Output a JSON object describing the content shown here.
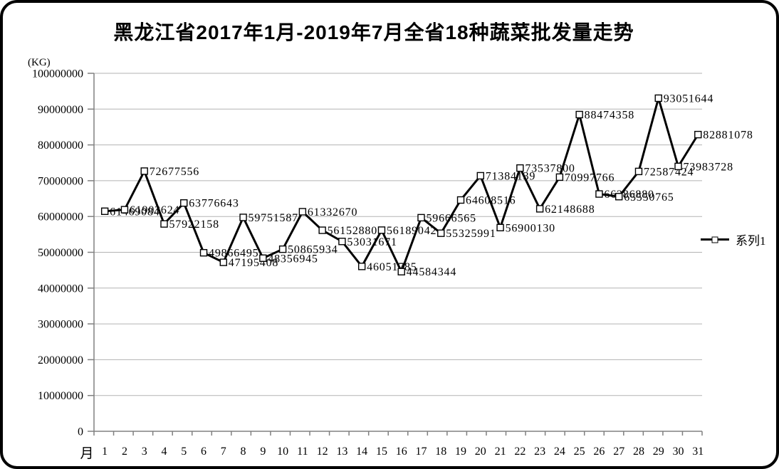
{
  "title": "黑龙江省2017年1月-2019年7月全省18种蔬菜批发量走势",
  "axis_unit_label": "(KG)",
  "x_axis_title": "月",
  "legend": {
    "series_label": "系列1"
  },
  "colors": {
    "line": "#000000",
    "marker_fill": "#ffffff",
    "grid": "#b3b3b3",
    "axis": "#808080",
    "text": "#000000",
    "frame_border": "#000000"
  },
  "chart_data": {
    "type": "line",
    "title": "黑龙江省2017年1月-2019年7月全省18种蔬菜批发量走势",
    "xlabel": "月",
    "ylabel": "(KG)",
    "x": [
      1,
      2,
      3,
      4,
      5,
      6,
      7,
      8,
      9,
      10,
      11,
      12,
      13,
      14,
      15,
      16,
      17,
      18,
      19,
      20,
      21,
      22,
      23,
      24,
      25,
      26,
      27,
      28,
      29,
      30,
      31
    ],
    "series": [
      {
        "name": "系列1",
        "values": [
          61469084,
          61903624,
          72677556,
          57922158,
          63776643,
          49866495,
          47195408,
          59751587,
          48356945,
          50865934,
          61332670,
          56152880,
          53031671,
          46051785,
          56189042,
          44584344,
          59666565,
          55325991,
          64608516,
          71384139,
          56900130,
          73537800,
          62148688,
          70997766,
          88474358,
          66286880,
          65550765,
          72587424,
          93051644,
          73983728,
          82881078
        ]
      }
    ],
    "ylim": [
      0,
      100000000
    ],
    "y_tick_step": 10000000,
    "grid": true,
    "legend_position": "right",
    "marker": "open-square",
    "data_labels": true
  }
}
